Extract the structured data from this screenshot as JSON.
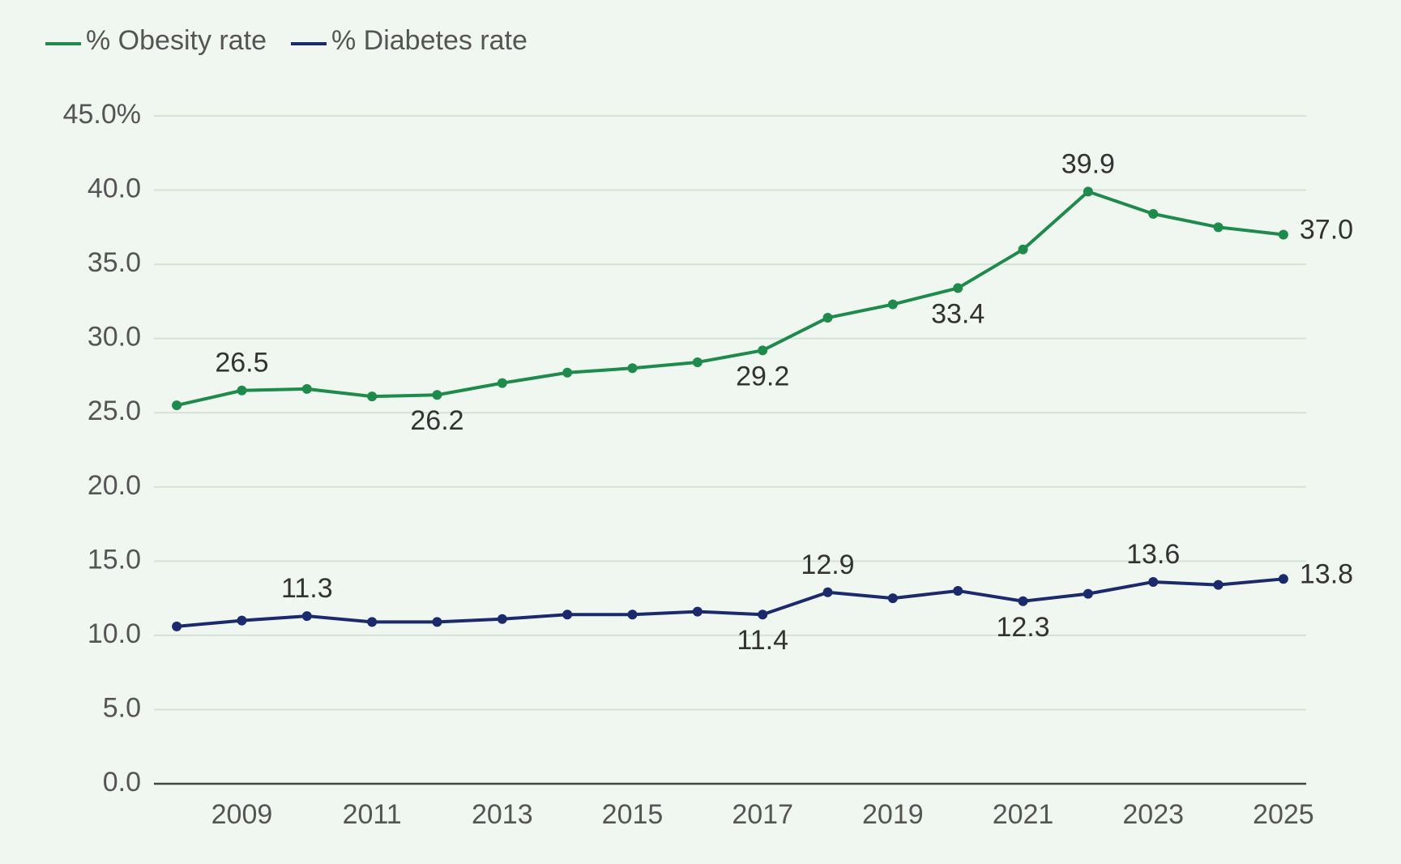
{
  "chart_data": {
    "type": "line",
    "x": [
      2008,
      2009,
      2010,
      2011,
      2012,
      2013,
      2014,
      2015,
      2016,
      2017,
      2018,
      2019,
      2020,
      2021,
      2022,
      2023,
      2024,
      2025
    ],
    "xlim": [
      2007.65,
      2025.35
    ],
    "xticks": [
      2009,
      2011,
      2013,
      2015,
      2017,
      2019,
      2021,
      2023,
      2025
    ],
    "ylim": [
      0,
      45
    ],
    "yticks": [
      {
        "value": 0,
        "label": "0.0"
      },
      {
        "value": 5,
        "label": "5.0"
      },
      {
        "value": 10,
        "label": "10.0"
      },
      {
        "value": 15,
        "label": "15.0"
      },
      {
        "value": 20,
        "label": "20.0"
      },
      {
        "value": 25,
        "label": "25.0"
      },
      {
        "value": 30,
        "label": "30.0"
      },
      {
        "value": 35,
        "label": "35.0"
      },
      {
        "value": 40,
        "label": "40.0"
      },
      {
        "value": 45,
        "label": "45.0%"
      }
    ],
    "grid": true,
    "legend": "top-left",
    "series": [
      {
        "name": "% Obesity rate",
        "color": "#1e8a4c",
        "values": [
          25.5,
          26.5,
          26.6,
          26.1,
          26.2,
          27.0,
          27.7,
          28.0,
          28.4,
          29.2,
          31.4,
          32.3,
          33.4,
          36.0,
          39.9,
          38.4,
          37.5,
          37.0
        ],
        "value_labels": [
          null,
          "26.5",
          null,
          null,
          "26.2",
          null,
          null,
          null,
          null,
          "29.2",
          null,
          null,
          "33.4",
          null,
          "39.9",
          null,
          null,
          "37.0"
        ]
      },
      {
        "name": "% Diabetes rate",
        "color": "#1a2a6c",
        "values": [
          10.6,
          11.0,
          11.3,
          10.9,
          10.9,
          11.1,
          11.4,
          11.4,
          11.6,
          11.4,
          12.9,
          12.5,
          13.0,
          12.3,
          12.8,
          13.6,
          13.4,
          13.8
        ],
        "value_labels": [
          null,
          null,
          "11.3",
          null,
          null,
          null,
          null,
          null,
          null,
          "11.4",
          "12.9",
          null,
          null,
          "12.3",
          null,
          "13.6",
          null,
          "13.8"
        ]
      }
    ]
  }
}
